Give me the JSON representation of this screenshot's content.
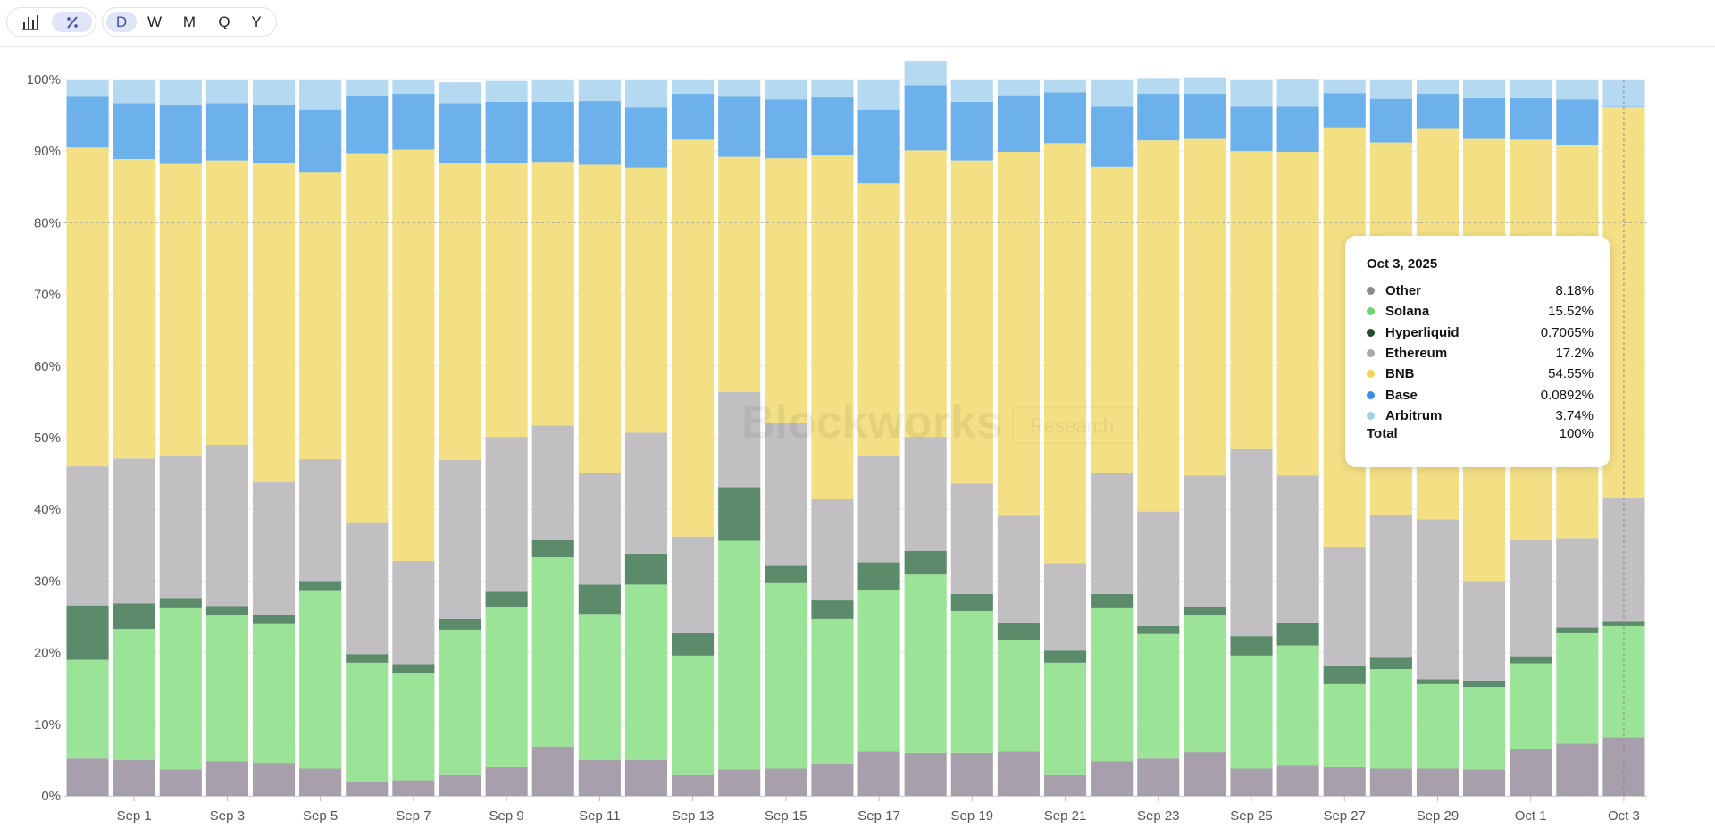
{
  "toolbar": {
    "chart_type_buttons": [
      {
        "icon": "bar-chart-icon",
        "active": false
      },
      {
        "icon": "percent-icon",
        "active": true
      }
    ],
    "timeframes": [
      {
        "label": "D",
        "active": true
      },
      {
        "label": "W",
        "active": false
      },
      {
        "label": "M",
        "active": false
      },
      {
        "label": "Q",
        "active": false
      },
      {
        "label": "Y",
        "active": false
      }
    ]
  },
  "watermark": {
    "brand": "Blockworks",
    "sub": "Research"
  },
  "tooltip": {
    "date": "Oct 3, 2025",
    "rows": [
      {
        "name": "Other",
        "value": "8.18%",
        "color": "#8c8c8c"
      },
      {
        "name": "Solana",
        "value": "15.52%",
        "color": "#6fd66f"
      },
      {
        "name": "Hyperliquid",
        "value": "0.7065%",
        "color": "#1e4d2b"
      },
      {
        "name": "Ethereum",
        "value": "17.2%",
        "color": "#aaaaaa"
      },
      {
        "name": "BNB",
        "value": "54.55%",
        "color": "#f3d25a"
      },
      {
        "name": "Base",
        "value": "0.0892%",
        "color": "#3a8ee6"
      },
      {
        "name": "Arbitrum",
        "value": "3.74%",
        "color": "#9fd0ee"
      }
    ],
    "total_label": "Total",
    "total_value": "100%"
  },
  "chart_data": {
    "type": "bar",
    "stacked": true,
    "normalized_percent": true,
    "x_tick_labels": [
      "Sep 1",
      "Sep 3",
      "Sep 5",
      "Sep 7",
      "Sep 9",
      "Sep 11",
      "Sep 13",
      "Sep 15",
      "Sep 17",
      "Sep 19",
      "Sep 21",
      "Sep 23",
      "Sep 25",
      "Sep 27",
      "Sep 29",
      "Oct 1",
      "Oct 3"
    ],
    "y_ticks": [
      "0%",
      "10%",
      "20%",
      "30%",
      "40%",
      "50%",
      "60%",
      "70%",
      "80%",
      "90%",
      "100%"
    ],
    "ylim": [
      0,
      100
    ],
    "categories": [
      "Aug 31",
      "Sep 1",
      "Sep 2",
      "Sep 3",
      "Sep 4",
      "Sep 5",
      "Sep 6",
      "Sep 7",
      "Sep 8",
      "Sep 9",
      "Sep 10",
      "Sep 11",
      "Sep 12",
      "Sep 13",
      "Sep 14",
      "Sep 15",
      "Sep 16",
      "Sep 17",
      "Sep 18",
      "Sep 19",
      "Sep 20",
      "Sep 21",
      "Sep 22",
      "Sep 23",
      "Sep 24",
      "Sep 25",
      "Sep 26",
      "Sep 27",
      "Sep 28",
      "Sep 29",
      "Sep 30",
      "Oct 1",
      "Oct 2",
      "Oct 3"
    ],
    "series": [
      {
        "name": "Other",
        "color": "#a79fab",
        "values": [
          5.2,
          5.0,
          3.7,
          4.8,
          4.6,
          3.8,
          2.0,
          2.2,
          2.9,
          4.0,
          6.9,
          5.0,
          5.0,
          2.9,
          3.7,
          3.8,
          4.5,
          6.2,
          6.0,
          6.0,
          6.2,
          2.9,
          4.8,
          5.2,
          6.1,
          3.8,
          4.3,
          4.0,
          3.8,
          3.8,
          3.7,
          6.5,
          7.3,
          8.18
        ]
      },
      {
        "name": "Solana",
        "color": "#9be396",
        "values": [
          13.8,
          18.3,
          22.5,
          20.5,
          19.5,
          24.8,
          16.6,
          15.0,
          20.3,
          22.3,
          26.4,
          20.4,
          24.5,
          16.7,
          31.9,
          25.9,
          20.2,
          22.6,
          24.9,
          19.8,
          15.6,
          15.7,
          21.4,
          17.4,
          19.1,
          15.8,
          16.7,
          11.6,
          13.9,
          11.8,
          11.5,
          12.0,
          15.4,
          15.52
        ]
      },
      {
        "name": "Hyperliquid",
        "color": "#5b8b6a",
        "values": [
          7.6,
          3.6,
          1.3,
          1.2,
          1.1,
          1.4,
          1.2,
          1.2,
          1.5,
          2.2,
          2.4,
          4.1,
          4.3,
          3.1,
          7.5,
          2.4,
          2.6,
          3.8,
          3.3,
          2.4,
          2.4,
          1.7,
          2.0,
          1.1,
          1.2,
          2.7,
          3.2,
          2.5,
          1.6,
          0.7,
          0.9,
          1.0,
          0.8,
          0.7065
        ]
      },
      {
        "name": "Ethereum",
        "color": "#c2bfc2",
        "values": [
          19.4,
          20.2,
          20.0,
          22.5,
          18.6,
          17.0,
          18.4,
          14.4,
          22.2,
          21.6,
          16.0,
          15.6,
          16.9,
          13.5,
          13.3,
          19.9,
          14.1,
          14.9,
          15.9,
          15.4,
          14.9,
          12.2,
          16.9,
          16.0,
          18.3,
          26.1,
          20.5,
          16.7,
          20.0,
          22.3,
          13.9,
          16.3,
          12.5,
          17.2
        ]
      },
      {
        "name": "BNB",
        "color": "#f3df84",
        "values": [
          44.5,
          41.8,
          40.7,
          39.7,
          44.6,
          40.0,
          51.5,
          57.4,
          41.5,
          38.2,
          36.8,
          43.0,
          37.0,
          55.4,
          32.8,
          37.0,
          48.0,
          38.0,
          40.0,
          45.1,
          50.8,
          58.6,
          42.7,
          51.8,
          47.0,
          41.6,
          45.2,
          58.5,
          51.9,
          54.6,
          61.7,
          55.8,
          54.9,
          54.55
        ]
      },
      {
        "name": "Base",
        "color": "#6db1ec",
        "values": [
          7.1,
          7.8,
          8.3,
          8.0,
          8.0,
          8.8,
          8.0,
          7.8,
          8.3,
          8.6,
          8.4,
          8.9,
          8.4,
          6.4,
          8.4,
          8.2,
          8.1,
          10.3,
          9.1,
          8.2,
          7.9,
          7.1,
          8.4,
          6.5,
          6.3,
          6.2,
          6.3,
          4.8,
          6.1,
          4.8,
          5.7,
          5.8,
          6.3,
          0.0892
        ]
      },
      {
        "name": "Arbitrum",
        "color": "#b4d9f1",
        "values": [
          2.4,
          3.3,
          3.5,
          3.3,
          3.6,
          4.2,
          2.3,
          2.0,
          2.9,
          2.9,
          3.1,
          3.0,
          3.9,
          2.0,
          2.4,
          2.8,
          2.5,
          4.2,
          3.4,
          3.1,
          2.2,
          1.8,
          3.8,
          2.2,
          2.3,
          3.8,
          3.9,
          1.9,
          2.7,
          2.0,
          2.6,
          2.6,
          2.8,
          3.74
        ]
      }
    ],
    "hover_index": 33,
    "legend": "tooltip"
  }
}
